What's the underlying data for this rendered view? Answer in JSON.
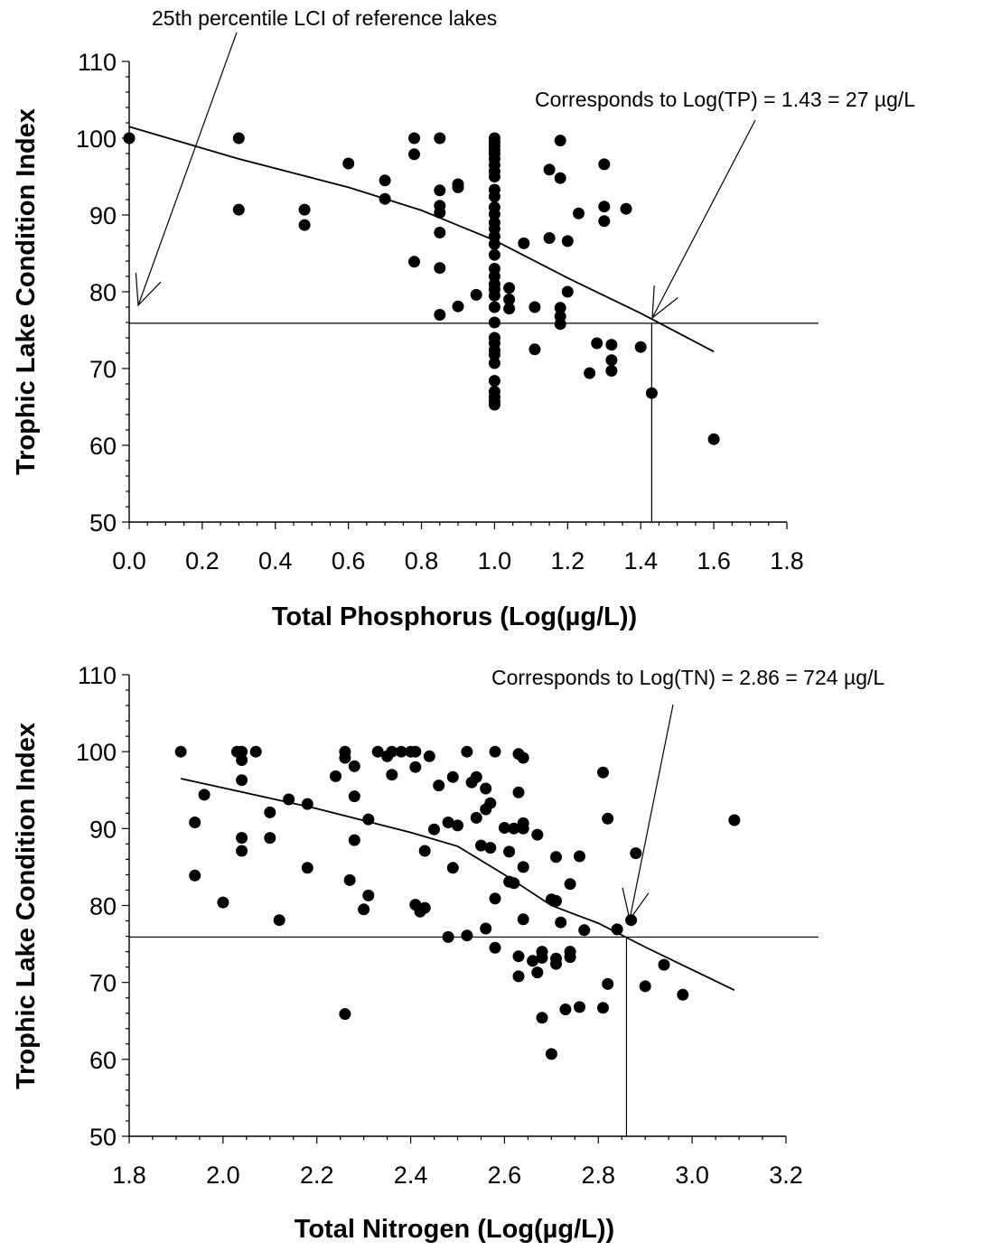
{
  "chart_data": [
    {
      "type": "scatter",
      "title": "",
      "xlabel": "Total Phosphorus (Log(µg/L))",
      "ylabel": "Trophic Lake Condition Index",
      "xlim": [
        0.0,
        1.8
      ],
      "ylim": [
        50,
        110
      ],
      "x_ticks": [
        "0.0",
        "0.2",
        "0.4",
        "0.6",
        "0.8",
        "1.0",
        "1.2",
        "1.4",
        "1.6",
        "1.8"
      ],
      "y_ticks": [
        "50",
        "60",
        "70",
        "80",
        "90",
        "100",
        "110"
      ],
      "grid": false,
      "legend": "none",
      "reference_line": {
        "y": 75.9
      },
      "threshold_x": 1.43,
      "fit_line": {
        "x": [
          0.0,
          0.3,
          0.6,
          0.8,
          1.0,
          1.2,
          1.4,
          1.6
        ],
        "y": [
          101.5,
          97.3,
          93.6,
          90.6,
          86.7,
          81.8,
          77.2,
          72.2
        ]
      },
      "points": [
        [
          0.0,
          100
        ],
        [
          0.3,
          100
        ],
        [
          0.3,
          90.7
        ],
        [
          0.48,
          90.7
        ],
        [
          0.48,
          88.7
        ],
        [
          0.6,
          96.7
        ],
        [
          0.7,
          94.5
        ],
        [
          0.7,
          92.1
        ],
        [
          0.78,
          100
        ],
        [
          0.78,
          97.9
        ],
        [
          0.78,
          83.9
        ],
        [
          0.85,
          100
        ],
        [
          0.85,
          93.2
        ],
        [
          0.85,
          91.2
        ],
        [
          0.85,
          90.3
        ],
        [
          0.85,
          87.7
        ],
        [
          0.85,
          83.1
        ],
        [
          0.85,
          77.0
        ],
        [
          0.9,
          94.0
        ],
        [
          0.9,
          93.6
        ],
        [
          0.9,
          78.1
        ],
        [
          0.95,
          79.6
        ],
        [
          1.0,
          100
        ],
        [
          1.0,
          99.5
        ],
        [
          1.0,
          99.0
        ],
        [
          1.0,
          98.5
        ],
        [
          1.0,
          98.0
        ],
        [
          1.0,
          97.3
        ],
        [
          1.0,
          96.5
        ],
        [
          1.0,
          95.7
        ],
        [
          1.0,
          95.0
        ],
        [
          1.0,
          93.3
        ],
        [
          1.0,
          92.4
        ],
        [
          1.0,
          91.0
        ],
        [
          1.0,
          90.1
        ],
        [
          1.0,
          89.0
        ],
        [
          1.0,
          88.2
        ],
        [
          1.0,
          87.2
        ],
        [
          1.0,
          86.2
        ],
        [
          1.0,
          84.8
        ],
        [
          1.0,
          83.0
        ],
        [
          1.0,
          82.0
        ],
        [
          1.0,
          81.0
        ],
        [
          1.0,
          80.3
        ],
        [
          1.0,
          79.5
        ],
        [
          1.0,
          78.0
        ],
        [
          1.0,
          76.0
        ],
        [
          1.0,
          74.0
        ],
        [
          1.0,
          73.3
        ],
        [
          1.0,
          72.4
        ],
        [
          1.0,
          71.8
        ],
        [
          1.0,
          70.7
        ],
        [
          1.0,
          68.4
        ],
        [
          1.0,
          67.0
        ],
        [
          1.0,
          66.3
        ],
        [
          1.0,
          65.7
        ],
        [
          1.0,
          65.3
        ],
        [
          1.04,
          80.5
        ],
        [
          1.04,
          79.0
        ],
        [
          1.04,
          77.8
        ],
        [
          1.08,
          86.3
        ],
        [
          1.11,
          78.0
        ],
        [
          1.11,
          72.5
        ],
        [
          1.15,
          95.9
        ],
        [
          1.15,
          87.0
        ],
        [
          1.18,
          99.7
        ],
        [
          1.18,
          94.8
        ],
        [
          1.18,
          77.9
        ],
        [
          1.18,
          76.8
        ],
        [
          1.18,
          75.8
        ],
        [
          1.2,
          86.6
        ],
        [
          1.2,
          80.0
        ],
        [
          1.23,
          90.2
        ],
        [
          1.26,
          69.4
        ],
        [
          1.28,
          73.3
        ],
        [
          1.3,
          96.6
        ],
        [
          1.3,
          91.1
        ],
        [
          1.3,
          89.2
        ],
        [
          1.32,
          73.1
        ],
        [
          1.32,
          71.1
        ],
        [
          1.32,
          69.7
        ],
        [
          1.36,
          90.8
        ],
        [
          1.4,
          72.8
        ],
        [
          1.43,
          66.8
        ],
        [
          1.6,
          60.8
        ]
      ],
      "annotations": [
        "25th percentile LCI of reference lakes",
        "Corresponds to Log(TP) = 1.43 = 27 µg/L"
      ]
    },
    {
      "type": "scatter",
      "title": "",
      "xlabel": "Total Nitrogen (Log(µg/L))",
      "ylabel": "Trophic Lake Condition Index",
      "xlim": [
        1.8,
        3.2
      ],
      "ylim": [
        50,
        110
      ],
      "x_ticks": [
        "1.8",
        "2.0",
        "2.2",
        "2.4",
        "2.6",
        "2.8",
        "3.0",
        "3.2"
      ],
      "y_ticks": [
        "50",
        "60",
        "70",
        "80",
        "90",
        "100",
        "110"
      ],
      "grid": false,
      "legend": "none",
      "reference_line": {
        "y": 75.9
      },
      "threshold_x": 2.86,
      "fit_line": {
        "x": [
          1.91,
          2.0,
          2.2,
          2.4,
          2.5,
          2.6,
          2.7,
          2.8,
          2.9,
          3.09
        ],
        "y": [
          96.5,
          95.3,
          92.6,
          89.5,
          87.7,
          84.0,
          80.0,
          77.7,
          74.6,
          69.0
        ]
      },
      "points": [
        [
          1.91,
          100
        ],
        [
          1.94,
          90.8
        ],
        [
          1.94,
          83.9
        ],
        [
          1.96,
          94.4
        ],
        [
          2.0,
          80.4
        ],
        [
          2.03,
          100
        ],
        [
          2.04,
          100
        ],
        [
          2.04,
          98.9
        ],
        [
          2.04,
          96.3
        ],
        [
          2.04,
          88.8
        ],
        [
          2.04,
          87.1
        ],
        [
          2.07,
          100
        ],
        [
          2.1,
          92.1
        ],
        [
          2.1,
          88.8
        ],
        [
          2.12,
          78.1
        ],
        [
          2.14,
          93.8
        ],
        [
          2.18,
          93.2
        ],
        [
          2.18,
          84.9
        ],
        [
          2.24,
          96.8
        ],
        [
          2.26,
          100
        ],
        [
          2.26,
          99.2
        ],
        [
          2.26,
          65.9
        ],
        [
          2.27,
          83.3
        ],
        [
          2.28,
          98.1
        ],
        [
          2.28,
          94.2
        ],
        [
          2.28,
          88.5
        ],
        [
          2.3,
          79.5
        ],
        [
          2.31,
          91.2
        ],
        [
          2.31,
          81.3
        ],
        [
          2.33,
          100
        ],
        [
          2.35,
          99.4
        ],
        [
          2.36,
          100
        ],
        [
          2.36,
          97.0
        ],
        [
          2.38,
          100
        ],
        [
          2.4,
          100
        ],
        [
          2.41,
          100
        ],
        [
          2.41,
          98.0
        ],
        [
          2.41,
          80.1
        ],
        [
          2.42,
          79.2
        ],
        [
          2.43,
          79.7
        ],
        [
          2.43,
          87.1
        ],
        [
          2.44,
          99.4
        ],
        [
          2.45,
          89.9
        ],
        [
          2.46,
          95.6
        ],
        [
          2.48,
          90.8
        ],
        [
          2.48,
          75.9
        ],
        [
          2.49,
          96.7
        ],
        [
          2.49,
          84.9
        ],
        [
          2.5,
          90.4
        ],
        [
          2.52,
          100
        ],
        [
          2.52,
          76.1
        ],
        [
          2.53,
          96.0
        ],
        [
          2.54,
          96.7
        ],
        [
          2.54,
          91.4
        ],
        [
          2.55,
          87.8
        ],
        [
          2.56,
          95.2
        ],
        [
          2.56,
          92.5
        ],
        [
          2.56,
          77.0
        ],
        [
          2.57,
          93.3
        ],
        [
          2.57,
          87.5
        ],
        [
          2.58,
          100
        ],
        [
          2.58,
          80.9
        ],
        [
          2.58,
          74.5
        ],
        [
          2.6,
          90.1
        ],
        [
          2.61,
          87.0
        ],
        [
          2.61,
          83.1
        ],
        [
          2.62,
          90.0
        ],
        [
          2.62,
          82.9
        ],
        [
          2.63,
          99.7
        ],
        [
          2.63,
          94.7
        ],
        [
          2.63,
          73.4
        ],
        [
          2.63,
          70.8
        ],
        [
          2.64,
          99.2
        ],
        [
          2.64,
          90.7
        ],
        [
          2.64,
          90.0
        ],
        [
          2.64,
          85.0
        ],
        [
          2.64,
          78.2
        ],
        [
          2.66,
          72.8
        ],
        [
          2.67,
          89.2
        ],
        [
          2.67,
          71.3
        ],
        [
          2.68,
          74.0
        ],
        [
          2.68,
          73.2
        ],
        [
          2.68,
          65.4
        ],
        [
          2.7,
          80.8
        ],
        [
          2.7,
          60.7
        ],
        [
          2.71,
          86.3
        ],
        [
          2.71,
          80.6
        ],
        [
          2.71,
          73.1
        ],
        [
          2.71,
          72.4
        ],
        [
          2.72,
          77.8
        ],
        [
          2.73,
          66.5
        ],
        [
          2.74,
          82.8
        ],
        [
          2.74,
          74.0
        ],
        [
          2.74,
          73.3
        ],
        [
          2.76,
          86.4
        ],
        [
          2.76,
          66.8
        ],
        [
          2.77,
          76.8
        ],
        [
          2.81,
          97.3
        ],
        [
          2.81,
          66.7
        ],
        [
          2.82,
          91.3
        ],
        [
          2.82,
          69.8
        ],
        [
          2.84,
          76.9
        ],
        [
          2.87,
          78.1
        ],
        [
          2.88,
          86.8
        ],
        [
          2.9,
          69.5
        ],
        [
          2.94,
          72.3
        ],
        [
          2.98,
          68.4
        ],
        [
          3.09,
          91.1
        ]
      ],
      "annotations": [
        "Corresponds to Log(TN) = 2.86 = 724 µg/L"
      ]
    }
  ]
}
